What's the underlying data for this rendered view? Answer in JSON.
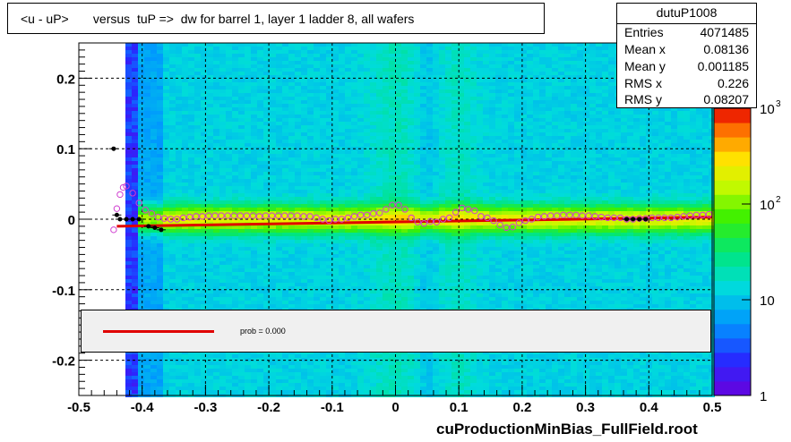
{
  "title": "<u - uP>       versus  tuP =>  dw for barrel 1, layer 1 ladder 8, all wafers",
  "stats": {
    "name": "dutuP1008",
    "rows": [
      {
        "key": "Entries",
        "value": "4071485"
      },
      {
        "key": "Mean x",
        "value": "0.08136"
      },
      {
        "key": "Mean y",
        "value": "0.001185"
      },
      {
        "key": "RMS x",
        "value": "0.226"
      },
      {
        "key": "RMS y",
        "value": "0.08207"
      }
    ]
  },
  "legend": {
    "text": "prob = 0.000",
    "line_color": "#e00000"
  },
  "footer": "cuProductionMinBias_FullField.root",
  "colorbar": {
    "labels": [
      "1",
      "10",
      "10",
      "10"
    ],
    "exponents": [
      "",
      "",
      "2",
      "3"
    ]
  },
  "chart_data": {
    "type": "heatmap",
    "xlim": [
      -0.5,
      0.5
    ],
    "ylim": [
      -0.25,
      0.25
    ],
    "x_ticks": [
      "-0.5",
      "-0.4",
      "-0.3",
      "-0.2",
      "-0.1",
      "0",
      "0.1",
      "0.2",
      "0.3",
      "0.4",
      "0.5"
    ],
    "y_ticks": [
      "-0.2",
      "-0.1",
      "0",
      "0.1",
      "0.2"
    ],
    "grid": true,
    "log_z": true,
    "z_range": [
      1,
      1000
    ],
    "fit_line": {
      "color": "#e00000",
      "points": [
        [
          -0.44,
          -0.01
        ],
        [
          0.5,
          0.003
        ]
      ]
    },
    "profile_points": [
      {
        "x": -0.445,
        "y": 0.1
      },
      {
        "x": -0.44,
        "y": 0.006
      },
      {
        "x": -0.435,
        "y": 0.0
      },
      {
        "x": -0.425,
        "y": 0.0
      },
      {
        "x": -0.415,
        "y": 0.0
      },
      {
        "x": -0.405,
        "y": 0.0
      },
      {
        "x": -0.39,
        "y": -0.01
      },
      {
        "x": -0.38,
        "y": -0.012
      },
      {
        "x": -0.37,
        "y": -0.015
      },
      {
        "x": 0.365,
        "y": 0.0
      },
      {
        "x": 0.375,
        "y": 0.0
      },
      {
        "x": 0.385,
        "y": 0.0
      },
      {
        "x": 0.395,
        "y": 0.0
      }
    ],
    "mean_points": [
      [
        -0.445,
        -0.015
      ],
      [
        -0.44,
        0.015
      ],
      [
        -0.435,
        0.035
      ],
      [
        -0.43,
        0.045
      ],
      [
        -0.425,
        0.047
      ],
      [
        -0.415,
        0.037
      ],
      [
        -0.405,
        0.023
      ],
      [
        -0.395,
        0.013
      ],
      [
        -0.385,
        0.008
      ],
      [
        -0.375,
        0.003
      ],
      [
        -0.365,
        0.001
      ],
      [
        -0.355,
        0.0
      ],
      [
        -0.345,
        0.0
      ],
      [
        -0.335,
        0.002
      ],
      [
        -0.325,
        0.003
      ],
      [
        -0.315,
        0.004
      ],
      [
        -0.305,
        0.004
      ],
      [
        -0.295,
        0.005
      ],
      [
        -0.285,
        0.005
      ],
      [
        -0.275,
        0.005
      ],
      [
        -0.265,
        0.005
      ],
      [
        -0.255,
        0.005
      ],
      [
        -0.245,
        0.005
      ],
      [
        -0.235,
        0.005
      ],
      [
        -0.225,
        0.005
      ],
      [
        -0.215,
        0.004
      ],
      [
        -0.205,
        0.005
      ],
      [
        -0.195,
        0.005
      ],
      [
        -0.185,
        0.005
      ],
      [
        -0.175,
        0.005
      ],
      [
        -0.165,
        0.005
      ],
      [
        -0.155,
        0.005
      ],
      [
        -0.145,
        0.004
      ],
      [
        -0.135,
        0.004
      ],
      [
        -0.125,
        0.002
      ],
      [
        -0.115,
        0.0
      ],
      [
        -0.105,
        -0.002
      ],
      [
        -0.095,
        0.0
      ],
      [
        -0.085,
        0.0
      ],
      [
        -0.075,
        0.002
      ],
      [
        -0.065,
        0.004
      ],
      [
        -0.055,
        0.006
      ],
      [
        -0.045,
        0.006
      ],
      [
        -0.035,
        0.008
      ],
      [
        -0.025,
        0.009
      ],
      [
        -0.015,
        0.014
      ],
      [
        -0.005,
        0.02
      ],
      [
        0.005,
        0.02
      ],
      [
        0.015,
        0.014
      ],
      [
        0.025,
        0.002
      ],
      [
        0.035,
        -0.004
      ],
      [
        0.045,
        -0.006
      ],
      [
        0.055,
        -0.003
      ],
      [
        0.065,
        -0.004
      ],
      [
        0.075,
        0.0
      ],
      [
        0.085,
        0.002
      ],
      [
        0.095,
        0.01
      ],
      [
        0.105,
        0.016
      ],
      [
        0.115,
        0.014
      ],
      [
        0.125,
        0.012
      ],
      [
        0.135,
        0.004
      ],
      [
        0.145,
        0.002
      ],
      [
        0.155,
        -0.002
      ],
      [
        0.165,
        -0.008
      ],
      [
        0.175,
        -0.012
      ],
      [
        0.185,
        -0.011
      ],
      [
        0.195,
        -0.005
      ],
      [
        0.205,
        -0.002
      ],
      [
        0.215,
        0.0
      ],
      [
        0.225,
        0.003
      ],
      [
        0.235,
        0.004
      ],
      [
        0.245,
        0.005
      ],
      [
        0.255,
        0.005
      ],
      [
        0.265,
        0.006
      ],
      [
        0.275,
        0.006
      ],
      [
        0.285,
        0.006
      ],
      [
        0.295,
        0.005
      ],
      [
        0.305,
        0.005
      ],
      [
        0.315,
        0.004
      ],
      [
        0.325,
        0.003
      ],
      [
        0.335,
        0.002
      ],
      [
        0.345,
        0.002
      ],
      [
        0.355,
        0.002
      ],
      [
        0.365,
        0.0
      ],
      [
        0.375,
        0.0
      ],
      [
        0.385,
        0.001
      ],
      [
        0.395,
        0.001
      ],
      [
        0.405,
        0.002
      ],
      [
        0.415,
        0.002
      ],
      [
        0.425,
        0.002
      ],
      [
        0.435,
        0.002
      ],
      [
        0.445,
        0.003
      ],
      [
        0.455,
        0.004
      ],
      [
        0.465,
        0.005
      ],
      [
        0.475,
        0.006
      ],
      [
        0.485,
        0.006
      ],
      [
        0.495,
        0.007
      ]
    ]
  }
}
